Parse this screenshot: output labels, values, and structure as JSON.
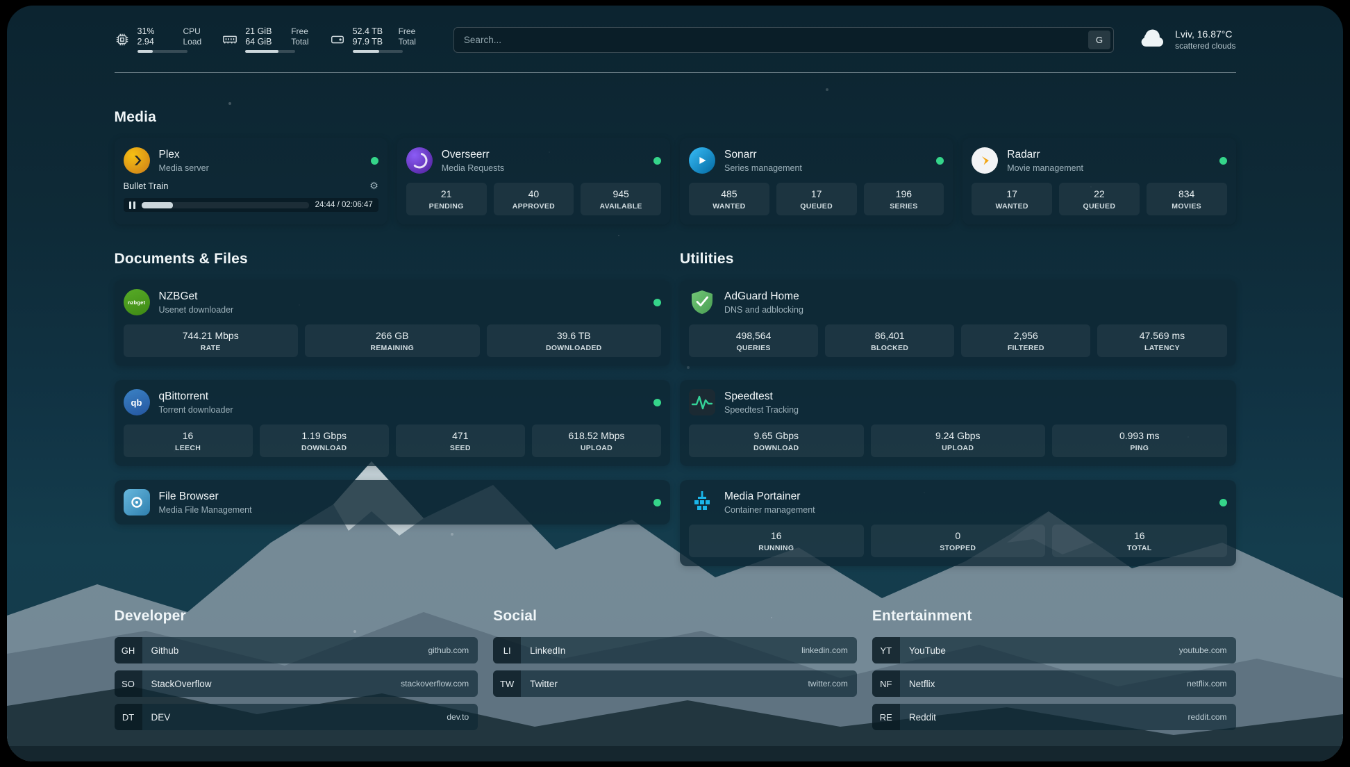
{
  "topbar": {
    "cpu": {
      "percent": "31%",
      "load": "2.94",
      "label_top": "CPU",
      "label_bottom": "Load",
      "bar_percent": 31
    },
    "memory": {
      "free": "21 GiB",
      "total": "64 GiB",
      "label_top": "Free",
      "label_bottom": "Total",
      "bar_percent": 67
    },
    "disk": {
      "free": "52.4 TB",
      "total": "97.9 TB",
      "label_top": "Free",
      "label_bottom": "Total",
      "bar_percent": 54
    },
    "search": {
      "placeholder": "Search...",
      "button_label": "G"
    },
    "weather": {
      "location": "Lviv, 16.87°C",
      "condition": "scattered clouds"
    }
  },
  "sections": {
    "media": {
      "title": "Media",
      "plex": {
        "name": "Plex",
        "desc": "Media server",
        "now_playing": "Bullet Train",
        "time": "24:44 / 02:06:47",
        "progress_percent": 19
      },
      "overseerr": {
        "name": "Overseerr",
        "desc": "Media Requests",
        "stats": [
          {
            "value": "21",
            "label": "PENDING"
          },
          {
            "value": "40",
            "label": "APPROVED"
          },
          {
            "value": "945",
            "label": "AVAILABLE"
          }
        ]
      },
      "sonarr": {
        "name": "Sonarr",
        "desc": "Series management",
        "stats": [
          {
            "value": "485",
            "label": "WANTED"
          },
          {
            "value": "17",
            "label": "QUEUED"
          },
          {
            "value": "196",
            "label": "SERIES"
          }
        ]
      },
      "radarr": {
        "name": "Radarr",
        "desc": "Movie management",
        "stats": [
          {
            "value": "17",
            "label": "WANTED"
          },
          {
            "value": "22",
            "label": "QUEUED"
          },
          {
            "value": "834",
            "label": "MOVIES"
          }
        ]
      }
    },
    "documents": {
      "title": "Documents & Files",
      "nzbget": {
        "name": "NZBGet",
        "desc": "Usenet downloader",
        "icon_text": "nzbget",
        "stats": [
          {
            "value": "744.21 Mbps",
            "label": "RATE"
          },
          {
            "value": "266 GB",
            "label": "REMAINING"
          },
          {
            "value": "39.6 TB",
            "label": "DOWNLOADED"
          }
        ]
      },
      "qbittorrent": {
        "name": "qBittorrent",
        "desc": "Torrent downloader",
        "icon_text": "qb",
        "stats": [
          {
            "value": "16",
            "label": "LEECH"
          },
          {
            "value": "1.19 Gbps",
            "label": "DOWNLOAD"
          },
          {
            "value": "471",
            "label": "SEED"
          },
          {
            "value": "618.52 Mbps",
            "label": "UPLOAD"
          }
        ]
      },
      "filebrowser": {
        "name": "File Browser",
        "desc": "Media File Management"
      }
    },
    "utilities": {
      "title": "Utilities",
      "adguard": {
        "name": "AdGuard Home",
        "desc": "DNS and adblocking",
        "stats": [
          {
            "value": "498,564",
            "label": "QUERIES"
          },
          {
            "value": "86,401",
            "label": "BLOCKED"
          },
          {
            "value": "2,956",
            "label": "FILTERED"
          },
          {
            "value": "47.569 ms",
            "label": "LATENCY"
          }
        ]
      },
      "speedtest": {
        "name": "Speedtest",
        "desc": "Speedtest Tracking",
        "stats": [
          {
            "value": "9.65 Gbps",
            "label": "DOWNLOAD"
          },
          {
            "value": "9.24 Gbps",
            "label": "UPLOAD"
          },
          {
            "value": "0.993 ms",
            "label": "PING"
          }
        ]
      },
      "portainer": {
        "name": "Media Portainer",
        "desc": "Container management",
        "stats": [
          {
            "value": "16",
            "label": "RUNNING"
          },
          {
            "value": "0",
            "label": "STOPPED"
          },
          {
            "value": "16",
            "label": "TOTAL"
          }
        ]
      }
    },
    "bookmarks": [
      {
        "title": "Developer",
        "items": [
          {
            "abbr": "GH",
            "name": "Github",
            "href": "github.com"
          },
          {
            "abbr": "SO",
            "name": "StackOverflow",
            "href": "stackoverflow.com"
          },
          {
            "abbr": "DT",
            "name": "DEV",
            "href": "dev.to"
          }
        ]
      },
      {
        "title": "Social",
        "items": [
          {
            "abbr": "LI",
            "name": "LinkedIn",
            "href": "linkedin.com"
          },
          {
            "abbr": "TW",
            "name": "Twitter",
            "href": "twitter.com"
          }
        ]
      },
      {
        "title": "Entertainment",
        "items": [
          {
            "abbr": "YT",
            "name": "YouTube",
            "href": "youtube.com"
          },
          {
            "abbr": "NF",
            "name": "Netflix",
            "href": "netflix.com"
          },
          {
            "abbr": "RE",
            "name": "Reddit",
            "href": "reddit.com"
          }
        ]
      }
    ]
  }
}
